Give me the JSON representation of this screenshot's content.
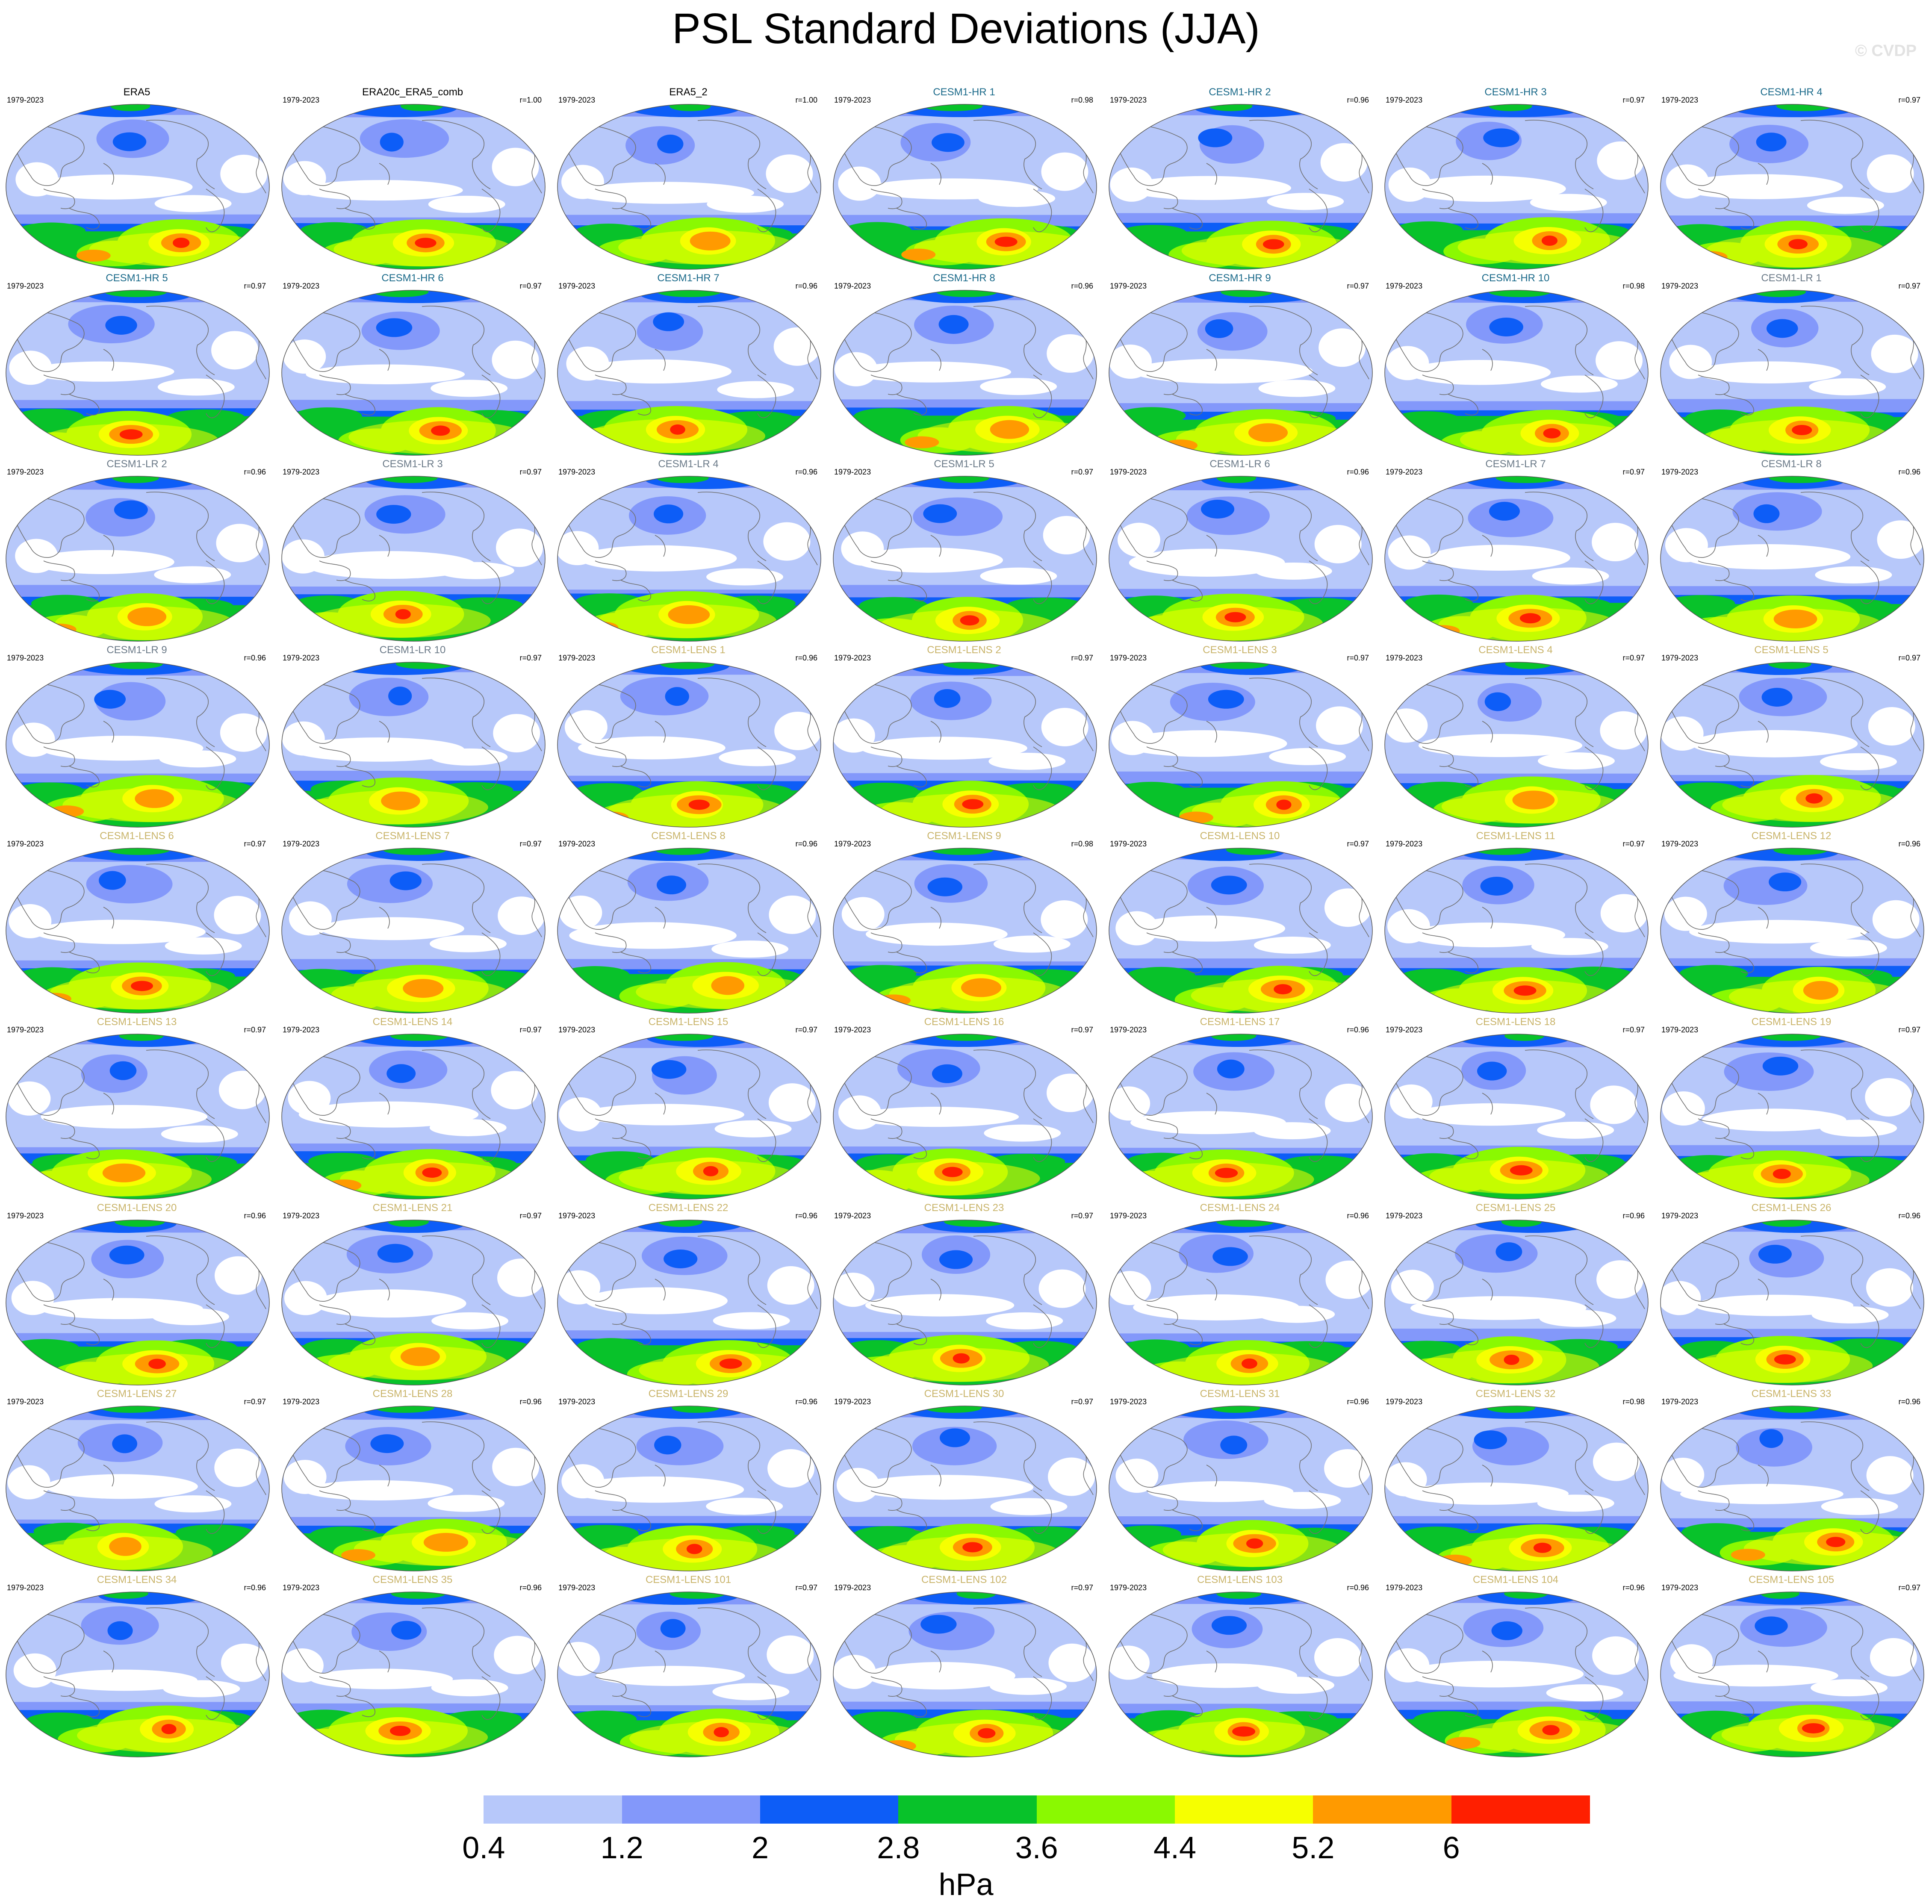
{
  "title": "PSL Standard Deviations (JJA)",
  "credit": "© CVDP",
  "colorbar": {
    "colors": [
      "#ffffff",
      "#b7c8fa",
      "#8398fa",
      "#0d5df7",
      "#08c22a",
      "#8af901",
      "#f6ff00",
      "#ff9a00",
      "#ff1f00"
    ],
    "ticks": [
      "0.4",
      "1.2",
      "2",
      "2.8",
      "3.6",
      "4.4",
      "5.2",
      "6"
    ],
    "units": "hPa"
  },
  "panels": [
    {
      "name": "ERA5",
      "years": "1979-2023",
      "r": "",
      "color": "#000000"
    },
    {
      "name": "ERA20c_ERA5_comb",
      "years": "1979-2023",
      "r": "r=1.00",
      "color": "#000000"
    },
    {
      "name": "ERA5_2",
      "years": "1979-2023",
      "r": "r=1.00",
      "color": "#000000"
    },
    {
      "name": "CESM1-HR 1",
      "years": "1979-2023",
      "r": "r=0.98",
      "color": "#1b6a8a"
    },
    {
      "name": "CESM1-HR 2",
      "years": "1979-2023",
      "r": "r=0.96",
      "color": "#1b6a8a"
    },
    {
      "name": "CESM1-HR 3",
      "years": "1979-2023",
      "r": "r=0.97",
      "color": "#1b6a8a"
    },
    {
      "name": "CESM1-HR 4",
      "years": "1979-2023",
      "r": "r=0.97",
      "color": "#1b6a8a"
    },
    {
      "name": "CESM1-HR 5",
      "years": "1979-2023",
      "r": "r=0.97",
      "color": "#1b6a8a"
    },
    {
      "name": "CESM1-HR 6",
      "years": "1979-2023",
      "r": "r=0.97",
      "color": "#1b6a8a"
    },
    {
      "name": "CESM1-HR 7",
      "years": "1979-2023",
      "r": "r=0.96",
      "color": "#1b6a8a"
    },
    {
      "name": "CESM1-HR 8",
      "years": "1979-2023",
      "r": "r=0.96",
      "color": "#1b6a8a"
    },
    {
      "name": "CESM1-HR 9",
      "years": "1979-2023",
      "r": "r=0.97",
      "color": "#1b6a8a"
    },
    {
      "name": "CESM1-HR 10",
      "years": "1979-2023",
      "r": "r=0.98",
      "color": "#1b6a8a"
    },
    {
      "name": "CESM1-LR 1",
      "years": "1979-2023",
      "r": "r=0.97",
      "color": "#6b7a88"
    },
    {
      "name": "CESM1-LR 2",
      "years": "1979-2023",
      "r": "r=0.96",
      "color": "#6b7a88"
    },
    {
      "name": "CESM1-LR 3",
      "years": "1979-2023",
      "r": "r=0.97",
      "color": "#6b7a88"
    },
    {
      "name": "CESM1-LR 4",
      "years": "1979-2023",
      "r": "r=0.96",
      "color": "#6b7a88"
    },
    {
      "name": "CESM1-LR 5",
      "years": "1979-2023",
      "r": "r=0.97",
      "color": "#6b7a88"
    },
    {
      "name": "CESM1-LR 6",
      "years": "1979-2023",
      "r": "r=0.96",
      "color": "#6b7a88"
    },
    {
      "name": "CESM1-LR 7",
      "years": "1979-2023",
      "r": "r=0.97",
      "color": "#6b7a88"
    },
    {
      "name": "CESM1-LR 8",
      "years": "1979-2023",
      "r": "r=0.96",
      "color": "#6b7a88"
    },
    {
      "name": "CESM1-LR 9",
      "years": "1979-2023",
      "r": "r=0.96",
      "color": "#6b7a88"
    },
    {
      "name": "CESM1-LR 10",
      "years": "1979-2023",
      "r": "r=0.97",
      "color": "#6b7a88"
    },
    {
      "name": "CESM1-LENS 1",
      "years": "1979-2023",
      "r": "r=0.96",
      "color": "#c9b46a"
    },
    {
      "name": "CESM1-LENS 2",
      "years": "1979-2023",
      "r": "r=0.97",
      "color": "#c9b46a"
    },
    {
      "name": "CESM1-LENS 3",
      "years": "1979-2023",
      "r": "r=0.97",
      "color": "#c9b46a"
    },
    {
      "name": "CESM1-LENS 4",
      "years": "1979-2023",
      "r": "r=0.97",
      "color": "#c9b46a"
    },
    {
      "name": "CESM1-LENS 5",
      "years": "1979-2023",
      "r": "r=0.97",
      "color": "#c9b46a"
    },
    {
      "name": "CESM1-LENS 6",
      "years": "1979-2023",
      "r": "r=0.97",
      "color": "#c9b46a"
    },
    {
      "name": "CESM1-LENS 7",
      "years": "1979-2023",
      "r": "r=0.97",
      "color": "#c9b46a"
    },
    {
      "name": "CESM1-LENS 8",
      "years": "1979-2023",
      "r": "r=0.96",
      "color": "#c9b46a"
    },
    {
      "name": "CESM1-LENS 9",
      "years": "1979-2023",
      "r": "r=0.98",
      "color": "#c9b46a"
    },
    {
      "name": "CESM1-LENS 10",
      "years": "1979-2023",
      "r": "r=0.97",
      "color": "#c9b46a"
    },
    {
      "name": "CESM1-LENS 11",
      "years": "1979-2023",
      "r": "r=0.97",
      "color": "#c9b46a"
    },
    {
      "name": "CESM1-LENS 12",
      "years": "1979-2023",
      "r": "r=0.96",
      "color": "#c9b46a"
    },
    {
      "name": "CESM1-LENS 13",
      "years": "1979-2023",
      "r": "r=0.97",
      "color": "#c9b46a"
    },
    {
      "name": "CESM1-LENS 14",
      "years": "1979-2023",
      "r": "r=0.97",
      "color": "#c9b46a"
    },
    {
      "name": "CESM1-LENS 15",
      "years": "1979-2023",
      "r": "r=0.97",
      "color": "#c9b46a"
    },
    {
      "name": "CESM1-LENS 16",
      "years": "1979-2023",
      "r": "r=0.97",
      "color": "#c9b46a"
    },
    {
      "name": "CESM1-LENS 17",
      "years": "1979-2023",
      "r": "r=0.96",
      "color": "#c9b46a"
    },
    {
      "name": "CESM1-LENS 18",
      "years": "1979-2023",
      "r": "r=0.97",
      "color": "#c9b46a"
    },
    {
      "name": "CESM1-LENS 19",
      "years": "1979-2023",
      "r": "r=0.97",
      "color": "#c9b46a"
    },
    {
      "name": "CESM1-LENS 20",
      "years": "1979-2023",
      "r": "r=0.96",
      "color": "#c9b46a"
    },
    {
      "name": "CESM1-LENS 21",
      "years": "1979-2023",
      "r": "r=0.97",
      "color": "#c9b46a"
    },
    {
      "name": "CESM1-LENS 22",
      "years": "1979-2023",
      "r": "r=0.96",
      "color": "#c9b46a"
    },
    {
      "name": "CESM1-LENS 23",
      "years": "1979-2023",
      "r": "r=0.97",
      "color": "#c9b46a"
    },
    {
      "name": "CESM1-LENS 24",
      "years": "1979-2023",
      "r": "r=0.96",
      "color": "#c9b46a"
    },
    {
      "name": "CESM1-LENS 25",
      "years": "1979-2023",
      "r": "r=0.96",
      "color": "#c9b46a"
    },
    {
      "name": "CESM1-LENS 26",
      "years": "1979-2023",
      "r": "r=0.96",
      "color": "#c9b46a"
    },
    {
      "name": "CESM1-LENS 27",
      "years": "1979-2023",
      "r": "r=0.97",
      "color": "#c9b46a"
    },
    {
      "name": "CESM1-LENS 28",
      "years": "1979-2023",
      "r": "r=0.96",
      "color": "#c9b46a"
    },
    {
      "name": "CESM1-LENS 29",
      "years": "1979-2023",
      "r": "r=0.96",
      "color": "#c9b46a"
    },
    {
      "name": "CESM1-LENS 30",
      "years": "1979-2023",
      "r": "r=0.97",
      "color": "#c9b46a"
    },
    {
      "name": "CESM1-LENS 31",
      "years": "1979-2023",
      "r": "r=0.96",
      "color": "#c9b46a"
    },
    {
      "name": "CESM1-LENS 32",
      "years": "1979-2023",
      "r": "r=0.98",
      "color": "#c9b46a"
    },
    {
      "name": "CESM1-LENS 33",
      "years": "1979-2023",
      "r": "r=0.96",
      "color": "#c9b46a"
    },
    {
      "name": "CESM1-LENS 34",
      "years": "1979-2023",
      "r": "r=0.96",
      "color": "#c9b46a"
    },
    {
      "name": "CESM1-LENS 35",
      "years": "1979-2023",
      "r": "r=0.96",
      "color": "#c9b46a"
    },
    {
      "name": "CESM1-LENS 101",
      "years": "1979-2023",
      "r": "r=0.97",
      "color": "#c9b46a"
    },
    {
      "name": "CESM1-LENS 102",
      "years": "1979-2023",
      "r": "r=0.97",
      "color": "#c9b46a"
    },
    {
      "name": "CESM1-LENS 103",
      "years": "1979-2023",
      "r": "r=0.96",
      "color": "#c9b46a"
    },
    {
      "name": "CESM1-LENS 104",
      "years": "1979-2023",
      "r": "r=0.96",
      "color": "#c9b46a"
    },
    {
      "name": "CESM1-LENS 105",
      "years": "1979-2023",
      "r": "r=0.97",
      "color": "#c9b46a"
    }
  ]
}
